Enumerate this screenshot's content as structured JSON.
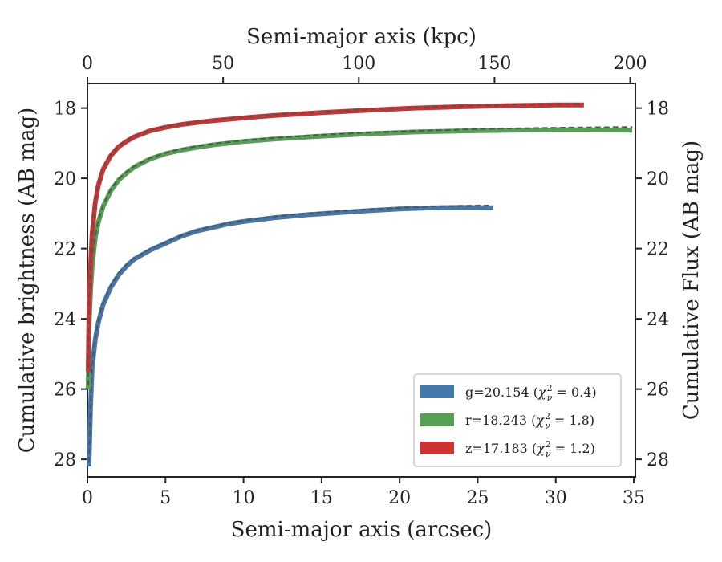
{
  "chart_data": {
    "type": "line",
    "xlabel": "Semi-major axis (arcsec)",
    "ylabel": "Cumulative brightness (AB mag)",
    "x2label": "Semi-major axis (kpc)",
    "y2label": "Cumulative Flux (AB mag)",
    "xlim": [
      0,
      35.1
    ],
    "ylim": [
      28.5,
      17.3
    ],
    "x2lim": [
      0,
      201.9
    ],
    "xticks": [
      "0",
      "5",
      "10",
      "15",
      "20",
      "25",
      "30",
      "35"
    ],
    "yticks": [
      "18",
      "20",
      "22",
      "24",
      "26",
      "28"
    ],
    "x2ticks": [
      "0",
      "50",
      "100",
      "150",
      "200"
    ],
    "y2ticks": [
      "18",
      "20",
      "22",
      "24",
      "26",
      "28"
    ],
    "legend_position": "lower-right",
    "grid": false,
    "series": [
      {
        "key": "g",
        "label_prefix": "g=20.154 (",
        "label_chi": "χ",
        "label_sub": "ν",
        "label_sup": "2",
        "label_suffix": " = 0.4)",
        "color": "#4477aa",
        "model_color": "#555555",
        "x": [
          0.1,
          0.2,
          0.3,
          0.5,
          0.7,
          1.0,
          1.5,
          2.0,
          2.5,
          3.0,
          4.0,
          5.0,
          6.0,
          7.0,
          8.0,
          9.0,
          10.0,
          12.0,
          14.0,
          16.0,
          18.0,
          20.0,
          22.0,
          24.0,
          26.0
        ],
        "y": [
          28.2,
          26.5,
          25.4,
          24.6,
          24.1,
          23.6,
          23.1,
          22.75,
          22.5,
          22.3,
          22.05,
          21.85,
          21.65,
          21.5,
          21.4,
          21.3,
          21.23,
          21.12,
          21.04,
          20.98,
          20.92,
          20.87,
          20.84,
          20.83,
          20.84
        ],
        "model_y": [
          28.1,
          26.4,
          25.35,
          24.55,
          24.05,
          23.55,
          23.05,
          22.7,
          22.45,
          22.27,
          22.02,
          21.82,
          21.63,
          21.48,
          21.37,
          21.28,
          21.2,
          21.09,
          21.0,
          20.94,
          20.88,
          20.84,
          20.8,
          20.78,
          20.77
        ]
      },
      {
        "key": "r",
        "label_prefix": "r=18.243 (",
        "label_chi": "χ",
        "label_sub": "ν",
        "label_sup": "2",
        "label_suffix": " = 1.8)",
        "color": "#55a055",
        "model_color": "#555555",
        "x": [
          0.05,
          0.1,
          0.2,
          0.3,
          0.5,
          0.7,
          1.0,
          1.5,
          2.0,
          2.5,
          3.0,
          4.0,
          5.0,
          6.0,
          7.0,
          8.0,
          10.0,
          12.0,
          15.0,
          18.0,
          21.0,
          24.0,
          27.0,
          30.0,
          32.0,
          34.9
        ],
        "y": [
          26.0,
          24.3,
          23.2,
          22.5,
          21.7,
          21.25,
          20.8,
          20.35,
          20.05,
          19.85,
          19.68,
          19.45,
          19.3,
          19.2,
          19.12,
          19.05,
          18.95,
          18.88,
          18.8,
          18.73,
          18.68,
          18.65,
          18.63,
          18.62,
          18.62,
          18.63
        ],
        "model_y": [
          25.9,
          24.25,
          23.15,
          22.45,
          21.65,
          21.2,
          20.77,
          20.32,
          20.02,
          19.82,
          19.66,
          19.43,
          19.28,
          19.17,
          19.09,
          19.02,
          18.92,
          18.85,
          18.76,
          18.7,
          18.65,
          18.61,
          18.58,
          18.56,
          18.55,
          18.54
        ]
      },
      {
        "key": "z",
        "label_prefix": "z=17.183 (",
        "label_chi": "χ",
        "label_sub": "ν",
        "label_sup": "2",
        "label_suffix": " = 1.2)",
        "color": "#cc3333",
        "model_color": "#555555",
        "x": [
          0.05,
          0.1,
          0.2,
          0.3,
          0.5,
          0.7,
          1.0,
          1.5,
          2.0,
          2.5,
          3.0,
          4.0,
          5.0,
          6.0,
          7.0,
          8.0,
          10.0,
          12.0,
          15.0,
          18.0,
          21.0,
          24.0,
          27.0,
          30.0,
          31.8
        ],
        "y": [
          25.5,
          23.8,
          22.5,
          21.6,
          20.7,
          20.2,
          19.75,
          19.35,
          19.1,
          18.95,
          18.82,
          18.65,
          18.55,
          18.47,
          18.41,
          18.36,
          18.28,
          18.21,
          18.13,
          18.06,
          18.0,
          17.96,
          17.93,
          17.91,
          17.91
        ],
        "model_y": [
          25.4,
          23.75,
          22.45,
          21.55,
          20.65,
          20.15,
          19.72,
          19.32,
          19.07,
          18.92,
          18.8,
          18.63,
          18.53,
          18.45,
          18.39,
          18.34,
          18.26,
          18.19,
          18.11,
          18.04,
          17.98,
          17.94,
          17.91,
          17.89,
          17.88
        ]
      }
    ]
  }
}
